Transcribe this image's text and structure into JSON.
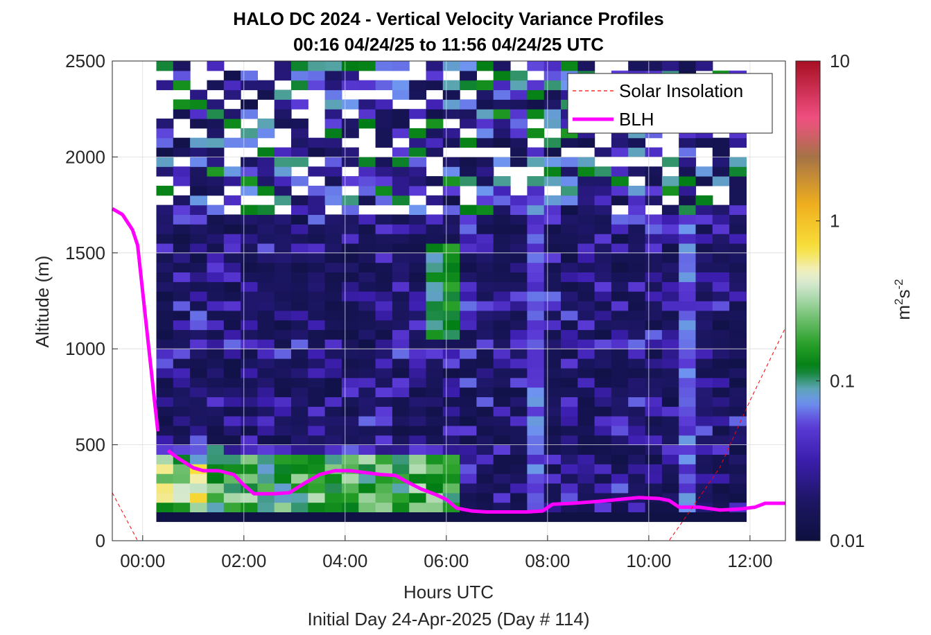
{
  "chart_data": {
    "type": "heatmap",
    "title_line1": "HALO DC 2024 - Vertical Velocity Variance Profiles",
    "title_line2": "00:16 04/24/25 to 11:56 04/24/25  UTC",
    "xlabel": "Hours UTC",
    "xlabel2": "Initial Day 24-Apr-2025 (Day # 114)",
    "ylabel": "Altitude (m)",
    "xlim_hours": [
      -0.6,
      12.7
    ],
    "ylim": [
      0,
      2500
    ],
    "x_ticks": [
      0,
      2,
      4,
      6,
      8,
      10,
      12
    ],
    "x_tick_labels": [
      "00:00",
      "02:00",
      "04:00",
      "06:00",
      "08:00",
      "10:00",
      "12:00"
    ],
    "y_ticks": [
      0,
      500,
      1000,
      1500,
      2000,
      2500
    ],
    "y_tick_labels": [
      "0",
      "500",
      "1000",
      "1500",
      "2000",
      "2500"
    ],
    "grid": true,
    "colorbar": {
      "scale": "log",
      "min": 0.01,
      "max": 10,
      "tick_values": [
        0.01,
        0.1,
        1,
        10
      ],
      "tick_labels": [
        "0.01",
        "0.1",
        "1",
        "10"
      ],
      "unit_base": "m",
      "unit_sup1": "2",
      "unit_mid": "s",
      "unit_sup2": "-2"
    },
    "legend": {
      "placement": "top-right",
      "entries": [
        {
          "label": "Solar Insolation",
          "color": "#ff0000",
          "style": "dashed"
        },
        {
          "label": "BLH",
          "color": "#ff00ff",
          "style": "solid"
        }
      ]
    },
    "series": [
      {
        "name": "BLH",
        "color": "#ff00ff",
        "segments": [
          [
            [
              -0.6,
              1730
            ],
            [
              -0.4,
              1700
            ],
            [
              -0.2,
              1620
            ],
            [
              -0.1,
              1540
            ],
            [
              0.3,
              570
            ]
          ],
          [
            [
              0.5,
              470
            ],
            [
              0.7,
              430
            ],
            [
              1.0,
              380
            ],
            [
              1.2,
              365
            ],
            [
              1.5,
              365
            ],
            [
              1.8,
              345
            ],
            [
              2.0,
              290
            ],
            [
              2.2,
              245
            ],
            [
              2.6,
              245
            ],
            [
              2.9,
              250
            ],
            [
              3.2,
              300
            ],
            [
              3.5,
              345
            ],
            [
              3.8,
              365
            ],
            [
              4.1,
              365
            ],
            [
              4.4,
              355
            ],
            [
              4.7,
              345
            ],
            [
              5.0,
              340
            ],
            [
              5.2,
              310
            ],
            [
              5.5,
              270
            ],
            [
              5.8,
              240
            ],
            [
              6.0,
              215
            ],
            [
              6.2,
              170
            ],
            [
              6.5,
              155
            ],
            [
              6.8,
              150
            ],
            [
              7.2,
              150
            ],
            [
              7.6,
              150
            ],
            [
              7.9,
              155
            ],
            [
              8.1,
              190
            ],
            [
              8.5,
              195
            ],
            [
              9.0,
              205
            ],
            [
              9.4,
              215
            ],
            [
              9.8,
              225
            ],
            [
              10.2,
              220
            ],
            [
              10.4,
              210
            ],
            [
              10.6,
              175
            ],
            [
              11.0,
              175
            ],
            [
              11.4,
              160
            ],
            [
              11.8,
              165
            ],
            [
              12.1,
              175
            ],
            [
              12.3,
              195
            ],
            [
              12.7,
              195
            ]
          ]
        ]
      },
      {
        "name": "Solar Insolation",
        "color": "#ff0000",
        "segments": [
          [
            [
              -0.6,
              250
            ],
            [
              -0.3,
              100
            ],
            [
              -0.1,
              0
            ],
            [
              10.4,
              0
            ],
            [
              10.8,
              150
            ],
            [
              11.4,
              380
            ],
            [
              12.0,
              730
            ],
            [
              12.7,
              1110
            ]
          ]
        ]
      }
    ],
    "heatmap_x_range_hours": [
      0.27,
      11.93
    ],
    "heatmap_y_range": [
      100,
      2500
    ],
    "cell_width_hours": 0.333,
    "cell_height_m": 50
  }
}
